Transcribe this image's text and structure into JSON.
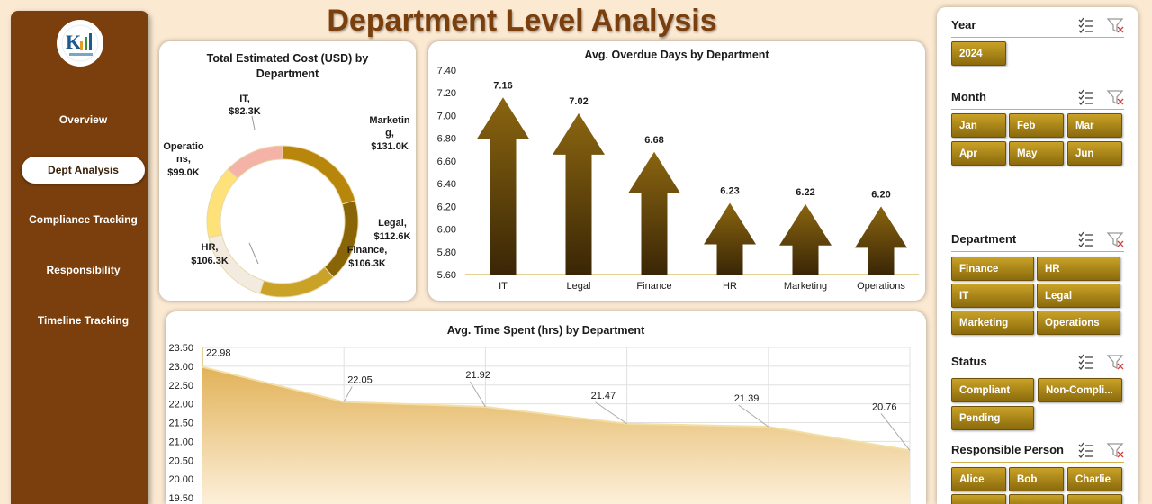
{
  "title": "Department Level Analysis",
  "nav": [
    {
      "label": "Overview",
      "active": false
    },
    {
      "label": "Dept Analysis",
      "active": true
    },
    {
      "label": "Compliance Tracking",
      "active": false
    },
    {
      "label": "Responsibility",
      "active": false
    },
    {
      "label": "Timeline Tracking",
      "active": false
    }
  ],
  "donut": {
    "title_line1": "Total Estimated Cost (USD) by",
    "title_line2": "Department",
    "labels": {
      "it": [
        "IT,",
        "$82.3K"
      ],
      "marketing": [
        "Marketin",
        "g,",
        "$131.0K"
      ],
      "legal": [
        "Legal,",
        "$112.6K"
      ],
      "finance": [
        "Finance,",
        "$106.3K"
      ],
      "hr": [
        "HR,",
        "$106.3K"
      ],
      "operations": [
        "Operatio",
        "ns,",
        "$99.0K"
      ]
    }
  },
  "overdue": {
    "title": "Avg. Overdue Days by Department"
  },
  "timespent": {
    "title": "Avg. Time Spent (hrs) by Department"
  },
  "chart_data": [
    {
      "type": "pie",
      "title": "Total Estimated Cost (USD) by Department",
      "categories": [
        "Marketing",
        "Legal",
        "Finance",
        "HR",
        "Operations",
        "IT"
      ],
      "values": [
        131.0,
        112.6,
        106.3,
        106.3,
        99.0,
        82.3
      ],
      "unit": "$K",
      "colors": [
        "#b8860b",
        "#8a6508",
        "#c9a227",
        "#f4ebe0",
        "#ffe17a",
        "#f4b3a6"
      ],
      "style": "donut"
    },
    {
      "type": "bar",
      "title": "Avg. Overdue Days by Department",
      "categories": [
        "IT",
        "Legal",
        "Finance",
        "HR",
        "Marketing",
        "Operations"
      ],
      "values": [
        7.16,
        7.02,
        6.68,
        6.23,
        6.22,
        6.2
      ],
      "ylim": [
        5.6,
        7.4
      ],
      "yticks": [
        "5.60",
        "5.80",
        "6.00",
        "6.20",
        "6.40",
        "6.60",
        "6.80",
        "7.00",
        "7.20",
        "7.40"
      ],
      "xlabel": "",
      "ylabel": "",
      "style": "arrow-columns"
    },
    {
      "type": "area",
      "title": "Avg. Time Spent (hrs) by Department",
      "values": [
        22.98,
        22.05,
        21.92,
        21.47,
        21.39,
        20.76
      ],
      "ylim": [
        19.5,
        23.5
      ],
      "yticks": [
        "19.50",
        "20.00",
        "20.50",
        "21.00",
        "21.50",
        "22.00",
        "22.50",
        "23.00",
        "23.50"
      ],
      "grid": true
    }
  ],
  "slicers": {
    "year": {
      "title": "Year",
      "items": [
        "2024"
      ]
    },
    "month": {
      "title": "Month",
      "items": [
        "Jan",
        "Feb",
        "Mar",
        "Apr",
        "May",
        "Jun"
      ]
    },
    "department": {
      "title": "Department",
      "items": [
        "Finance",
        "HR",
        "IT",
        "Legal",
        "Marketing",
        "Operations"
      ]
    },
    "status": {
      "title": "Status",
      "items": [
        "Compliant",
        "Non-Compli...",
        "Pending"
      ]
    },
    "person": {
      "title": "Responsible Person",
      "items": [
        "Alice",
        "Bob",
        "Charlie"
      ]
    }
  },
  "icons": {
    "multiselect": "multi-select-icon",
    "clear_filter": "clear-filter-icon",
    "logo": "company-logo"
  }
}
